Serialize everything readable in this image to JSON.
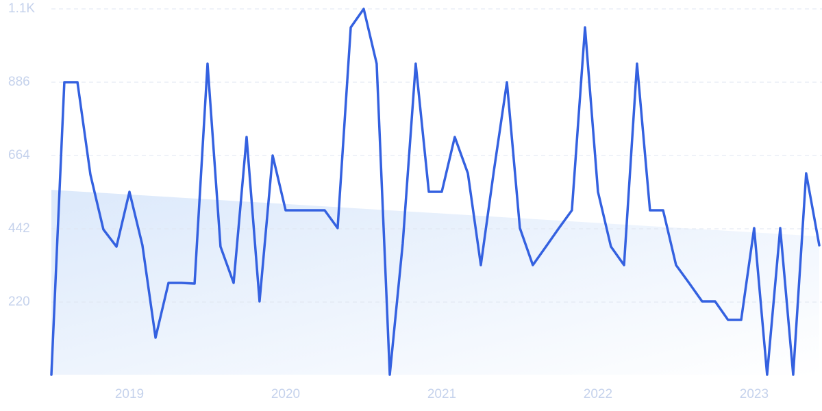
{
  "chart_data": {
    "type": "line",
    "x": [
      2018.5,
      2018.583,
      2018.667,
      2018.75,
      2018.833,
      2018.917,
      2019,
      2019.083,
      2019.167,
      2019.25,
      2019.333,
      2019.417,
      2019.5,
      2019.583,
      2019.667,
      2019.75,
      2019.833,
      2019.917,
      2020,
      2020.083,
      2020.167,
      2020.25,
      2020.333,
      2020.417,
      2020.5,
      2020.583,
      2020.667,
      2020.75,
      2020.833,
      2020.917,
      2021,
      2021.083,
      2021.167,
      2021.25,
      2021.333,
      2021.417,
      2021.5,
      2021.583,
      2021.667,
      2021.75,
      2021.833,
      2021.917,
      2022,
      2022.083,
      2022.167,
      2022.25,
      2022.333,
      2022.417,
      2022.5,
      2022.583,
      2022.667,
      2022.75,
      2022.833,
      2022.917,
      2023,
      2023.083,
      2023.167,
      2023.25,
      2023.333,
      2023.417
    ],
    "values": [
      0,
      886,
      886,
      606,
      440,
      388,
      554,
      392,
      112,
      278,
      278,
      276,
      942,
      388,
      278,
      720,
      222,
      664,
      498,
      498,
      498,
      498,
      444,
      1052,
      1108,
      942,
      0,
      398,
      942,
      554,
      554,
      720,
      610,
      332,
      616,
      886,
      444,
      332,
      388,
      444,
      498,
      1052,
      554,
      388,
      332,
      942,
      498,
      498,
      332,
      278,
      222,
      222,
      166,
      166,
      444,
      0,
      444,
      0,
      610,
      392
    ],
    "color": "#3461e0",
    "trend": {
      "x": [
        2018.5,
        2023.417
      ],
      "values": [
        560,
        419
      ],
      "color": "#dce9fb"
    },
    "xlim": [
      2018.5,
      2023.417
    ],
    "xticks": [
      2019,
      2020,
      2021,
      2022,
      2023
    ],
    "ylim": [
      0,
      1108
    ],
    "yticks": [
      220,
      442,
      664,
      886,
      {
        "value": 1108,
        "label": "1.1K"
      }
    ],
    "grid": true
  }
}
